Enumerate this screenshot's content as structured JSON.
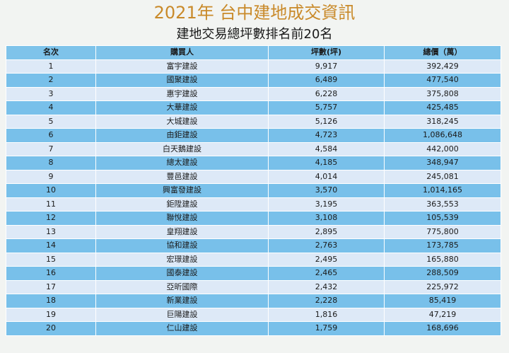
{
  "title": "2021年 台中建地成交資訊",
  "subtitle": "建地交易總坪數排名前20名",
  "table": {
    "headers": [
      "名次",
      "購買人",
      "坪數(坪)",
      "總價（萬）"
    ],
    "rows": [
      [
        "1",
        "富宇建設",
        "9,917",
        "392,429"
      ],
      [
        "2",
        "國聚建設",
        "6,489",
        "477,540"
      ],
      [
        "3",
        "惠宇建設",
        "6,228",
        "375,808"
      ],
      [
        "4",
        "大華建設",
        "5,757",
        "425,485"
      ],
      [
        "5",
        "大城建設",
        "5,126",
        "318,245"
      ],
      [
        "6",
        "由鉅建設",
        "4,723",
        "1,086,648"
      ],
      [
        "7",
        "白天鵝建設",
        "4,584",
        "442,000"
      ],
      [
        "8",
        "總太建設",
        "4,185",
        "348,947"
      ],
      [
        "9",
        "豐邑建設",
        "4,014",
        "245,081"
      ],
      [
        "10",
        "興富發建設",
        "3,570",
        "1,014,165"
      ],
      [
        "11",
        "鉅陞建設",
        "3,195",
        "363,553"
      ],
      [
        "12",
        "聯悅建設",
        "3,108",
        "105,539"
      ],
      [
        "13",
        "皇翔建設",
        "2,895",
        "775,800"
      ],
      [
        "14",
        "協和建設",
        "2,763",
        "173,785"
      ],
      [
        "15",
        "宏璟建設",
        "2,495",
        "165,880"
      ],
      [
        "16",
        "國泰建設",
        "2,465",
        "288,509"
      ],
      [
        "17",
        "亞昕國際",
        "2,432",
        "225,972"
      ],
      [
        "18",
        "新業建設",
        "2,228",
        "85,419"
      ],
      [
        "19",
        "巨陽建設",
        "1,816",
        "47,219"
      ],
      [
        "20",
        "仁山建設",
        "1,759",
        "168,696"
      ]
    ]
  }
}
